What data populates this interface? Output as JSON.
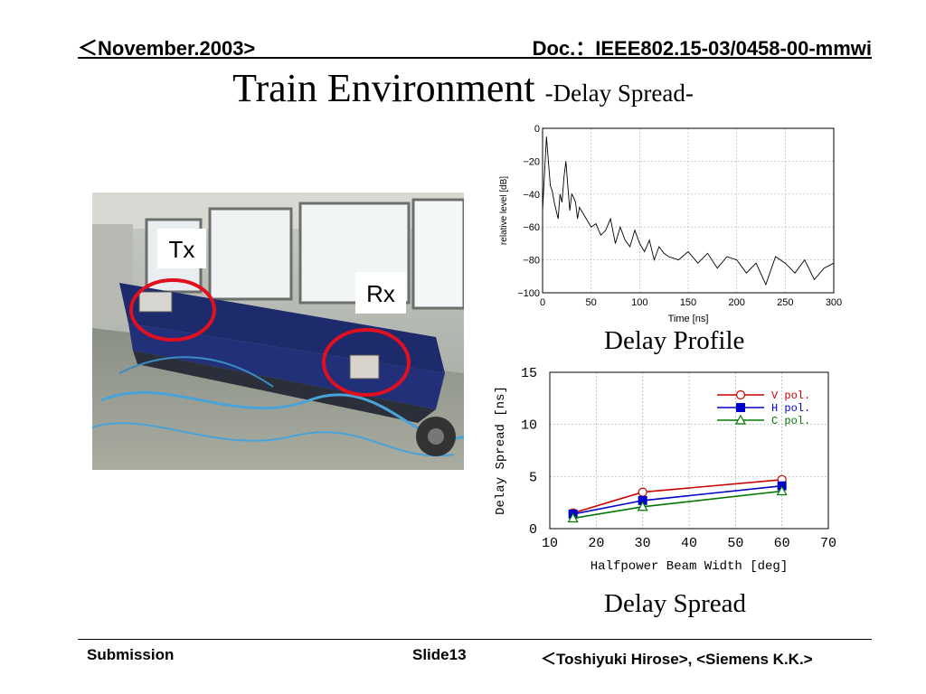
{
  "header": {
    "left": "＜November.2003>",
    "right": "Doc.：IEEE802.15-03/0458-00-mmwi"
  },
  "title": {
    "main": "Train Environment ",
    "sub": "-Delay Spread-"
  },
  "photo": {
    "tx_label": "Tx",
    "rx_label": "Rx",
    "marker_color": "#e01020"
  },
  "captions": {
    "profile": "Delay Profile",
    "spread": "Delay Spread"
  },
  "footer": {
    "left": "Submission",
    "center": "Slide13",
    "right": "＜Toshiyuki  Hirose>, <Siemens K.K.>"
  },
  "chart_data": [
    {
      "type": "line",
      "title": "",
      "xlabel": "Time [ns]",
      "ylabel": "relative level [dB]",
      "xlim": [
        0,
        300
      ],
      "ylim": [
        -100,
        0
      ],
      "xticks": [
        "0",
        "50",
        "100",
        "150",
        "200",
        "250",
        "300"
      ],
      "yticks": [
        "−100",
        "−80",
        "−60",
        "−40",
        "−20",
        "0"
      ],
      "grid": true,
      "series": [
        {
          "color": "#000000",
          "x": [
            0,
            2,
            4,
            6,
            8,
            10,
            12,
            14,
            16,
            18,
            20,
            22,
            24,
            26,
            28,
            30,
            32,
            34,
            36,
            38,
            40,
            45,
            50,
            55,
            60,
            65,
            70,
            75,
            80,
            85,
            90,
            95,
            100,
            105,
            110,
            115,
            120,
            125,
            130,
            140,
            150,
            160,
            170,
            180,
            190,
            200,
            210,
            220,
            230,
            240,
            250,
            260,
            270,
            280,
            290,
            300
          ],
          "values": [
            -50,
            -28,
            -5,
            -20,
            -35,
            -38,
            -45,
            -50,
            -55,
            -40,
            -45,
            -30,
            -20,
            -35,
            -50,
            -40,
            -42,
            -45,
            -55,
            -48,
            -50,
            -55,
            -60,
            -58,
            -65,
            -62,
            -55,
            -70,
            -60,
            -68,
            -72,
            -62,
            -70,
            -75,
            -68,
            -80,
            -72,
            -76,
            -78,
            -80,
            -75,
            -82,
            -76,
            -85,
            -78,
            -80,
            -88,
            -82,
            -95,
            -78,
            -82,
            -88,
            -80,
            -92,
            -85,
            -82
          ]
        }
      ]
    },
    {
      "type": "line",
      "title": "",
      "xlabel": "Halfpower Beam Width [deg]",
      "ylabel": "Delay Spread [ns]",
      "xlim": [
        10,
        70
      ],
      "ylim": [
        0,
        15
      ],
      "xticks": [
        "10",
        "20",
        "30",
        "40",
        "50",
        "60",
        "70"
      ],
      "yticks": [
        "0",
        "5",
        "10",
        "15"
      ],
      "grid": true,
      "legend_position": "top-right",
      "categories": [
        15,
        30,
        60
      ],
      "series": [
        {
          "name": "V pol.",
          "color": "#cc0000",
          "marker": "circle-open",
          "values": [
            1.5,
            3.5,
            4.7
          ]
        },
        {
          "name": "H pol.",
          "color": "#0000cc",
          "marker": "square-filled",
          "values": [
            1.4,
            2.7,
            4.1
          ]
        },
        {
          "name": "C pol.",
          "color": "#007700",
          "marker": "triangle-open",
          "values": [
            1.0,
            2.1,
            3.6
          ]
        }
      ]
    }
  ]
}
